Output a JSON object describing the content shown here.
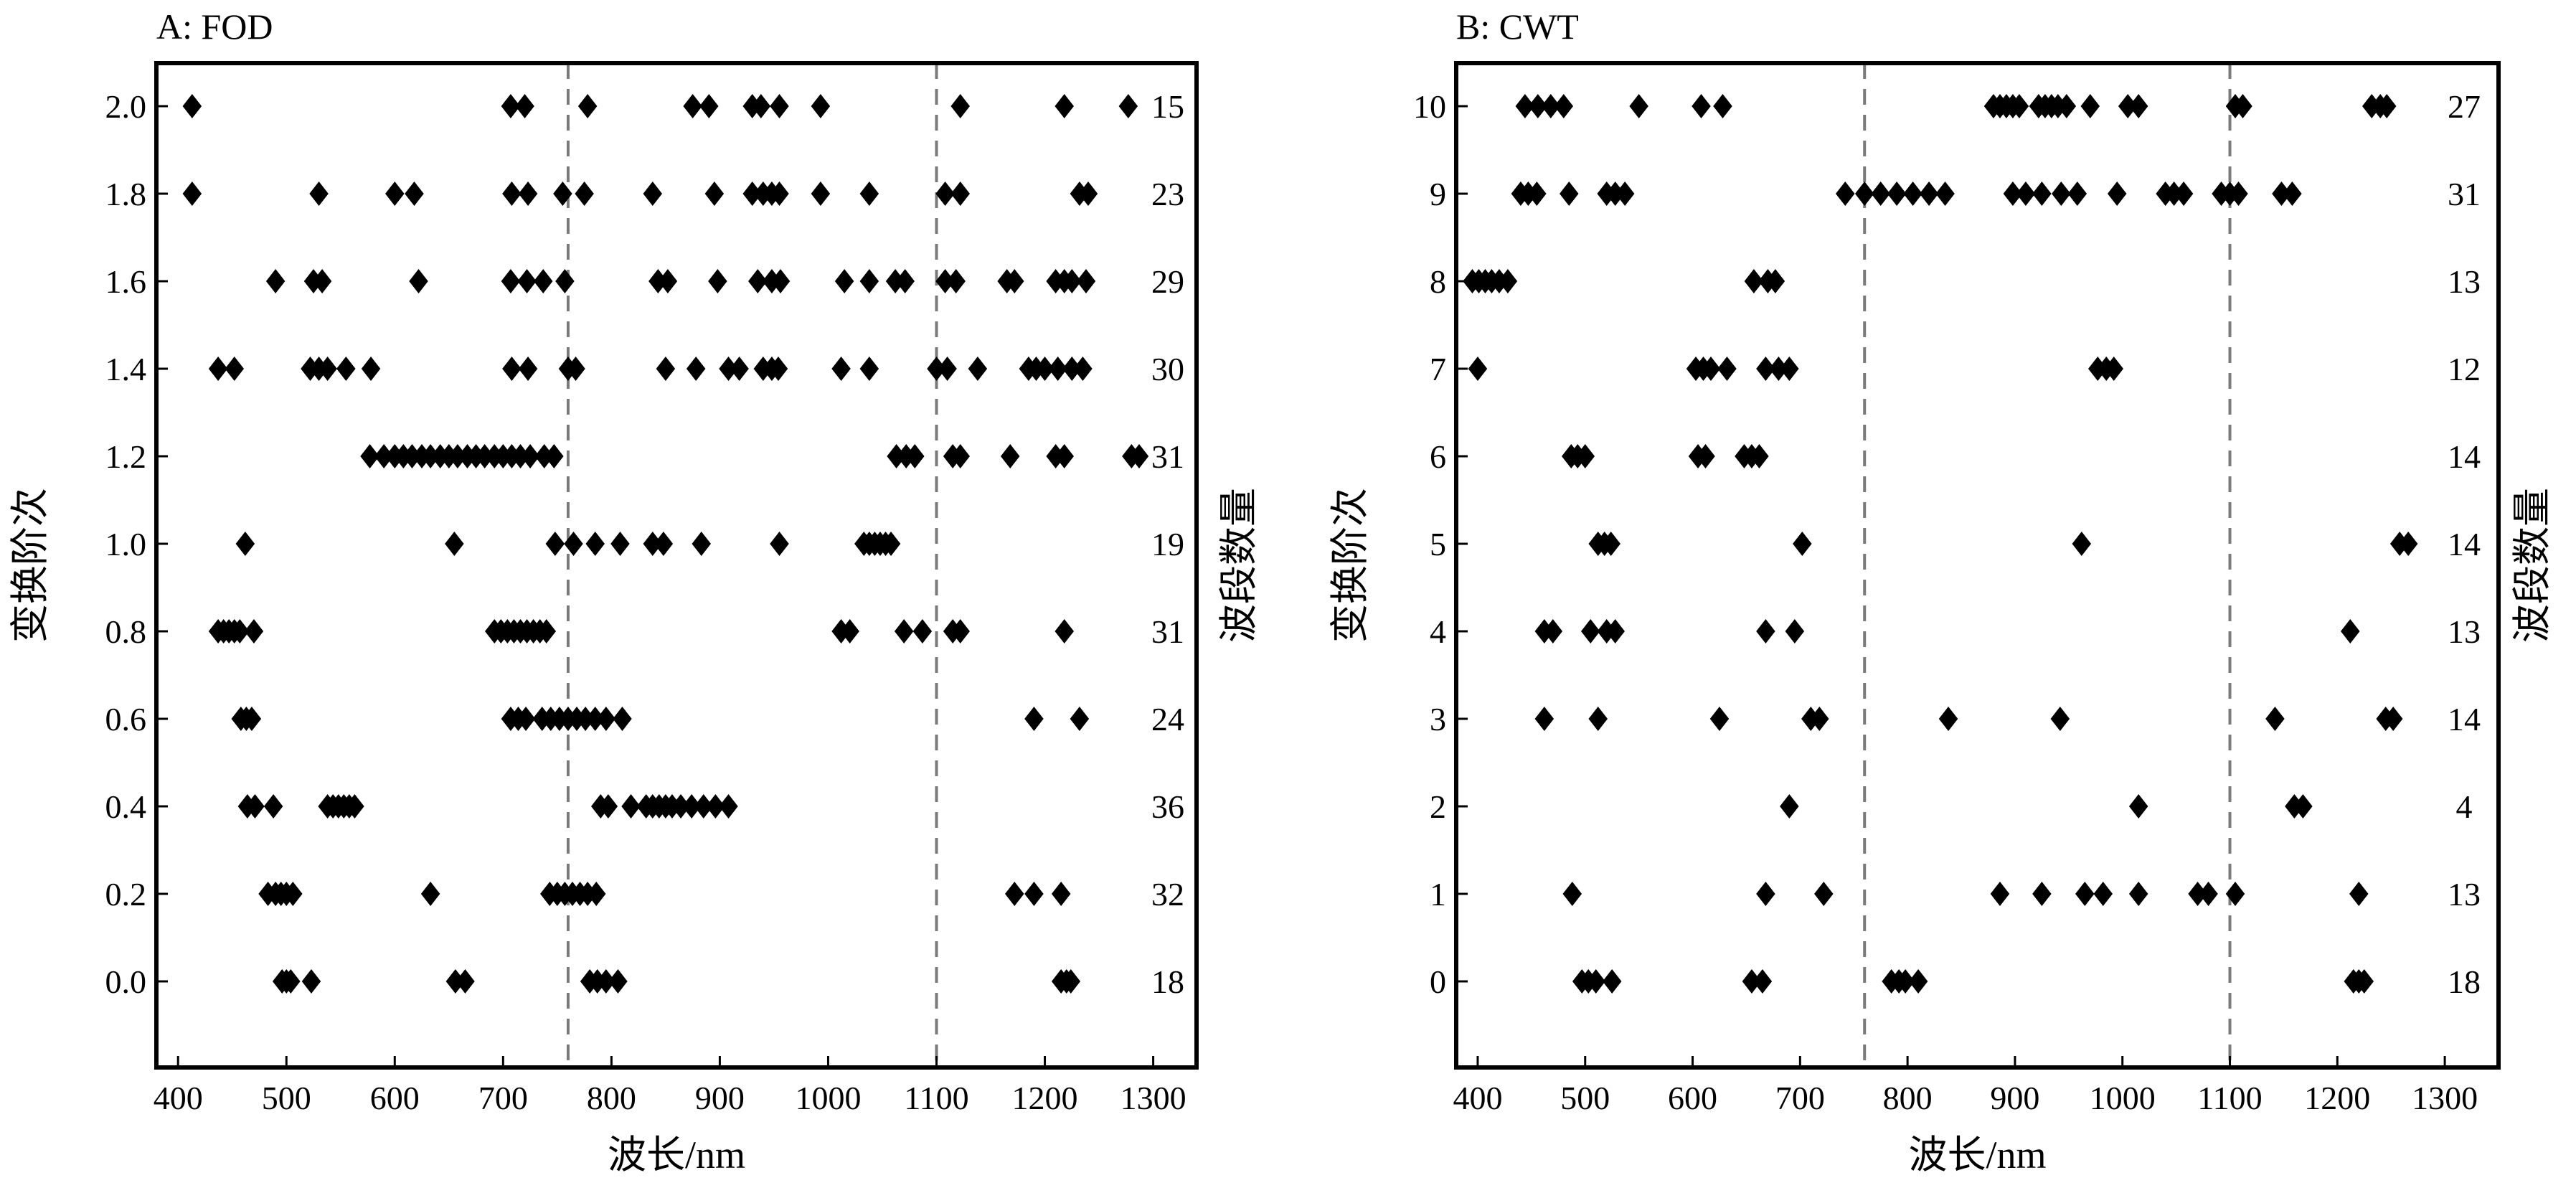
{
  "chart_data": [
    {
      "type": "scatter",
      "title": "A: FOD",
      "xlabel": "波长/nm",
      "ylabel": "变换阶次",
      "y2label": "波段数量",
      "xlim": [
        380,
        1340
      ],
      "xticks": [
        400,
        500,
        600,
        700,
        800,
        900,
        1000,
        1100,
        1200,
        1300
      ],
      "yticks": [
        0.0,
        0.2,
        0.4,
        0.6,
        0.8,
        1.0,
        1.2,
        1.4,
        1.6,
        1.8,
        2.0
      ],
      "ytick_labels": [
        "0.0",
        "0.2",
        "0.4",
        "0.6",
        "0.8",
        "1.0",
        "1.2",
        "1.4",
        "1.6",
        "1.8",
        "2.0"
      ],
      "vlines": [
        760,
        1100
      ],
      "marker": "diamond",
      "marker_color": "#000000",
      "grid": false,
      "rows": [
        {
          "y": 0.0,
          "count": "18",
          "x": [
            496,
            500,
            504,
            523,
            656,
            665,
            780,
            787,
            795,
            806,
            1215,
            1220,
            1224
          ]
        },
        {
          "y": 0.2,
          "count": "32",
          "x": [
            483,
            490,
            495,
            500,
            506,
            633,
            743,
            750,
            757,
            764,
            771,
            778,
            786,
            1172,
            1190,
            1215
          ]
        },
        {
          "y": 0.4,
          "count": "36",
          "x": [
            464,
            471,
            488,
            538,
            543,
            548,
            553,
            558,
            563,
            790,
            797,
            818,
            832,
            838,
            844,
            850,
            856,
            864,
            874,
            885,
            896,
            908
          ]
        },
        {
          "y": 0.6,
          "count": "24",
          "x": [
            458,
            463,
            468,
            707,
            714,
            721,
            736,
            744,
            752,
            760,
            768,
            776,
            785,
            795,
            810,
            1190,
            1232
          ]
        },
        {
          "y": 0.8,
          "count": "31",
          "x": [
            437,
            442,
            447,
            452,
            457,
            470,
            692,
            698,
            704,
            710,
            716,
            722,
            728,
            734,
            740,
            1012,
            1020,
            1070,
            1087,
            1115,
            1122,
            1218
          ]
        },
        {
          "y": 1.0,
          "count": "19",
          "x": [
            462,
            655,
            748,
            765,
            785,
            808,
            838,
            848,
            883,
            955,
            1033,
            1038,
            1043,
            1048,
            1053,
            1058
          ]
        },
        {
          "y": 1.2,
          "count": "31",
          "x": [
            577,
            590,
            600,
            608,
            616,
            625,
            633,
            642,
            650,
            658,
            667,
            675,
            683,
            692,
            700,
            708,
            716,
            725,
            738,
            747,
            1063,
            1072,
            1080,
            1115,
            1122,
            1168,
            1210,
            1218,
            1280,
            1287
          ]
        },
        {
          "y": 1.4,
          "count": "30",
          "x": [
            437,
            452,
            522,
            530,
            538,
            555,
            578,
            708,
            723,
            760,
            767,
            850,
            878,
            908,
            918,
            940,
            948,
            954,
            1012,
            1038,
            1100,
            1110,
            1138,
            1185,
            1192,
            1200,
            1212,
            1225,
            1235
          ]
        },
        {
          "y": 1.6,
          "count": "29",
          "x": [
            490,
            525,
            533,
            622,
            707,
            722,
            737,
            757,
            843,
            852,
            898,
            935,
            948,
            956,
            1015,
            1038,
            1062,
            1071,
            1108,
            1118,
            1165,
            1172,
            1210,
            1218,
            1225,
            1238
          ]
        },
        {
          "y": 1.8,
          "count": "23",
          "x": [
            413,
            530,
            600,
            618,
            708,
            723,
            755,
            775,
            838,
            895,
            930,
            940,
            948,
            955,
            993,
            1038,
            1108,
            1122,
            1232,
            1240
          ]
        },
        {
          "y": 2.0,
          "count": "15",
          "x": [
            413,
            707,
            720,
            778,
            875,
            890,
            930,
            938,
            955,
            993,
            1122,
            1218,
            1277
          ]
        }
      ]
    },
    {
      "type": "scatter",
      "title": "B: CWT",
      "xlabel": "波长/nm",
      "ylabel": "变换阶次",
      "y2label": "波段数量",
      "xlim": [
        380,
        1350
      ],
      "xticks": [
        400,
        500,
        600,
        700,
        800,
        900,
        1000,
        1100,
        1200,
        1300
      ],
      "yticks": [
        0,
        1,
        2,
        3,
        4,
        5,
        6,
        7,
        8,
        9,
        10
      ],
      "ytick_labels": [
        "0",
        "1",
        "2",
        "3",
        "4",
        "5",
        "6",
        "7",
        "8",
        "9",
        "10"
      ],
      "vlines": [
        760,
        1100
      ],
      "marker": "diamond",
      "marker_color": "#000000",
      "grid": false,
      "rows": [
        {
          "y": 0,
          "count": "18",
          "x": [
            497,
            503,
            510,
            525,
            655,
            665,
            785,
            792,
            798,
            810,
            1215,
            1220,
            1225
          ]
        },
        {
          "y": 1,
          "count": "13",
          "x": [
            488,
            668,
            722,
            886,
            925,
            965,
            982,
            1015,
            1070,
            1080,
            1105,
            1220
          ]
        },
        {
          "y": 2,
          "count": "4",
          "x": [
            690,
            1015,
            1160,
            1168
          ]
        },
        {
          "y": 3,
          "count": "14",
          "x": [
            462,
            512,
            625,
            710,
            718,
            838,
            942,
            1142,
            1245,
            1252
          ]
        },
        {
          "y": 4,
          "count": "13",
          "x": [
            462,
            470,
            505,
            520,
            528,
            668,
            695,
            1212
          ]
        },
        {
          "y": 5,
          "count": "14",
          "x": [
            512,
            518,
            524,
            702,
            962,
            1258,
            1266
          ]
        },
        {
          "y": 6,
          "count": "14",
          "x": [
            487,
            493,
            500,
            605,
            612,
            648,
            655,
            662
          ]
        },
        {
          "y": 7,
          "count": "12",
          "x": [
            400,
            603,
            610,
            617,
            632,
            668,
            680,
            690,
            977,
            985,
            992
          ]
        },
        {
          "y": 8,
          "count": "13",
          "x": [
            395,
            401,
            407,
            413,
            420,
            428,
            657,
            670,
            677
          ]
        },
        {
          "y": 9,
          "count": "31",
          "x": [
            742,
            760,
            775,
            790,
            805,
            820,
            835,
            898,
            910,
            925,
            943,
            958,
            995,
            1040,
            1048,
            1057,
            1092,
            1100,
            1108,
            1148,
            1158,
            440,
            447,
            455,
            485,
            520,
            528,
            537
          ]
        },
        {
          "y": 10,
          "count": "27",
          "x": [
            444,
            456,
            468,
            480,
            550,
            608,
            628,
            880,
            886,
            892,
            898,
            904,
            922,
            928,
            934,
            940,
            948,
            970,
            1005,
            1015,
            1105,
            1112,
            1232,
            1240,
            1246
          ]
        }
      ]
    }
  ]
}
